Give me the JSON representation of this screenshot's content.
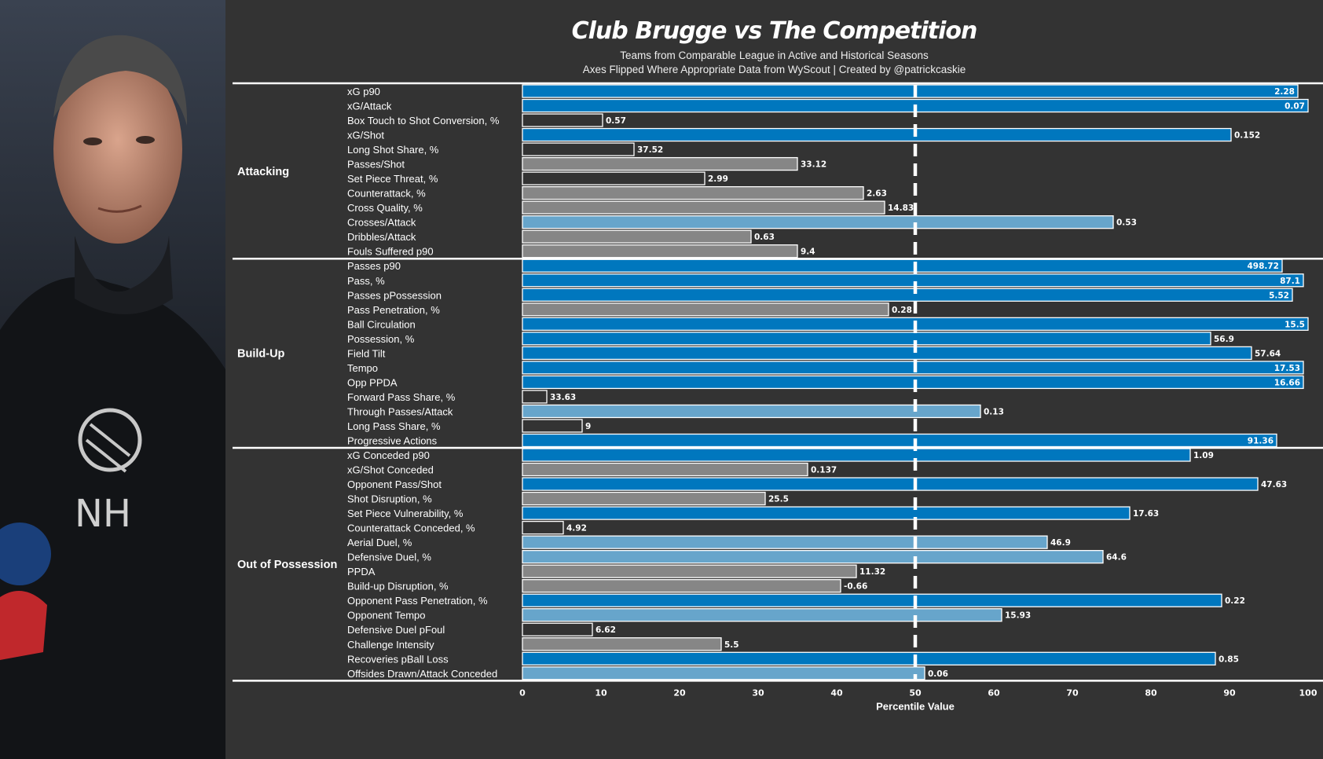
{
  "title": "Club Brugge vs The Competition",
  "subtitle_1": "Teams from Comparable League in Active and Historical Seasons",
  "subtitle_2": "Axes Flipped Where Appropriate  Data from WyScout | Created by @patrickcaskie",
  "photo_text": "NH",
  "colors": {
    "background": "#333333",
    "high": "#0077BE",
    "mid_high": "#67A5CB",
    "mid_low": "#868686",
    "low": "#333333",
    "line": "#FFFFFF"
  },
  "chart_data": {
    "type": "bar",
    "orientation": "horizontal",
    "title": "Club Brugge vs The Competition",
    "xlabel": "Percentile Value",
    "xlim": [
      0,
      100
    ],
    "xticks": [
      "0",
      "10",
      "20",
      "30",
      "40",
      "50",
      "60",
      "70",
      "80",
      "90",
      "100"
    ],
    "reference_line": 50,
    "sections": [
      {
        "name": "Attacking",
        "rows": [
          {
            "metric": "xG p90",
            "label": "2.28",
            "percentile": 98.7,
            "tier": "high"
          },
          {
            "metric": "xG/Attack",
            "label": "0.07",
            "percentile": 100,
            "tier": "high"
          },
          {
            "metric": "Box Touch to Shot Conversion, %",
            "label": "0.57",
            "percentile": 10.2,
            "tier": "low"
          },
          {
            "metric": "xG/Shot",
            "label": "0.152",
            "percentile": 90.2,
            "tier": "high"
          },
          {
            "metric": "Long Shot Share, %",
            "label": "37.52",
            "percentile": 14.2,
            "tier": "low"
          },
          {
            "metric": "Passes/Shot",
            "label": "33.12",
            "percentile": 35,
            "tier": "mid_low"
          },
          {
            "metric": "Set Piece Threat, %",
            "label": "2.99",
            "percentile": 23.2,
            "tier": "low"
          },
          {
            "metric": "Counterattack, %",
            "label": "2.63",
            "percentile": 43.4,
            "tier": "mid_low"
          },
          {
            "metric": "Cross Quality, %",
            "label": "14.83",
            "percentile": 46.1,
            "tier": "mid_low"
          },
          {
            "metric": "Crosses/Attack",
            "label": "0.53",
            "percentile": 75.2,
            "tier": "mid_high"
          },
          {
            "metric": "Dribbles/Attack",
            "label": "0.63",
            "percentile": 29.1,
            "tier": "mid_low"
          },
          {
            "metric": "Fouls Suffered p90",
            "label": "9.4",
            "percentile": 35,
            "tier": "mid_low"
          }
        ]
      },
      {
        "name": "Build-Up",
        "rows": [
          {
            "metric": "Passes p90",
            "label": "498.72",
            "percentile": 96.7,
            "tier": "high"
          },
          {
            "metric": "Pass, %",
            "label": "87.1",
            "percentile": 99.4,
            "tier": "high"
          },
          {
            "metric": "Passes pPossession",
            "label": "5.52",
            "percentile": 98,
            "tier": "high"
          },
          {
            "metric": "Pass Penetration, %",
            "label": "0.28",
            "percentile": 46.6,
            "tier": "mid_low"
          },
          {
            "metric": "Ball Circulation",
            "label": "15.5",
            "percentile": 100,
            "tier": "high"
          },
          {
            "metric": "Possession, %",
            "label": "56.9",
            "percentile": 87.6,
            "tier": "high"
          },
          {
            "metric": "Field Tilt",
            "label": "57.64",
            "percentile": 92.8,
            "tier": "high"
          },
          {
            "metric": "Tempo",
            "label": "17.53",
            "percentile": 99.4,
            "tier": "high"
          },
          {
            "metric": "Opp PPDA",
            "label": "16.66",
            "percentile": 99.4,
            "tier": "high"
          },
          {
            "metric": "Forward Pass Share, %",
            "label": "33.63",
            "percentile": 3.1,
            "tier": "low"
          },
          {
            "metric": "Through Passes/Attack",
            "label": "0.13",
            "percentile": 58.3,
            "tier": "mid_high"
          },
          {
            "metric": "Long Pass Share, %",
            "label": "9",
            "percentile": 7.6,
            "tier": "low"
          },
          {
            "metric": "Progressive Actions",
            "label": "91.36",
            "percentile": 96,
            "tier": "high"
          }
        ]
      },
      {
        "name": "Out of Possession",
        "rows": [
          {
            "metric": "xG Conceded p90",
            "label": "1.09",
            "percentile": 85,
            "tier": "high"
          },
          {
            "metric": "xG/Shot Conceded",
            "label": "0.137",
            "percentile": 36.3,
            "tier": "mid_low"
          },
          {
            "metric": "Opponent Pass/Shot",
            "label": "47.63",
            "percentile": 93.6,
            "tier": "high"
          },
          {
            "metric": "Shot Disruption, %",
            "label": "25.5",
            "percentile": 30.9,
            "tier": "mid_low"
          },
          {
            "metric": "Set Piece Vulnerability, %",
            "label": "17.63",
            "percentile": 77.3,
            "tier": "high"
          },
          {
            "metric": "Counterattack Conceded, %",
            "label": "4.92",
            "percentile": 5.2,
            "tier": "low"
          },
          {
            "metric": "Aerial Duel, %",
            "label": "46.9",
            "percentile": 66.8,
            "tier": "mid_high"
          },
          {
            "metric": "Defensive Duel, %",
            "label": "64.6",
            "percentile": 73.9,
            "tier": "mid_high"
          },
          {
            "metric": "PPDA",
            "label": "11.32",
            "percentile": 42.5,
            "tier": "mid_low"
          },
          {
            "metric": "Build-up Disruption, %",
            "label": "-0.66",
            "percentile": 40.5,
            "tier": "mid_low"
          },
          {
            "metric": "Opponent Pass Penetration, %",
            "label": "0.22",
            "percentile": 89,
            "tier": "high"
          },
          {
            "metric": "Opponent Tempo",
            "label": "15.93",
            "percentile": 61,
            "tier": "mid_high"
          },
          {
            "metric": "Defensive Duel pFoul",
            "label": "6.62",
            "percentile": 8.9,
            "tier": "low"
          },
          {
            "metric": "Challenge Intensity",
            "label": "5.5",
            "percentile": 25.3,
            "tier": "mid_low"
          },
          {
            "metric": "Recoveries pBall Loss",
            "label": "0.85",
            "percentile": 88.2,
            "tier": "high"
          },
          {
            "metric": "Offsides Drawn/Attack Conceded",
            "label": "0.06",
            "percentile": 51.2,
            "tier": "mid_high"
          }
        ]
      }
    ]
  }
}
